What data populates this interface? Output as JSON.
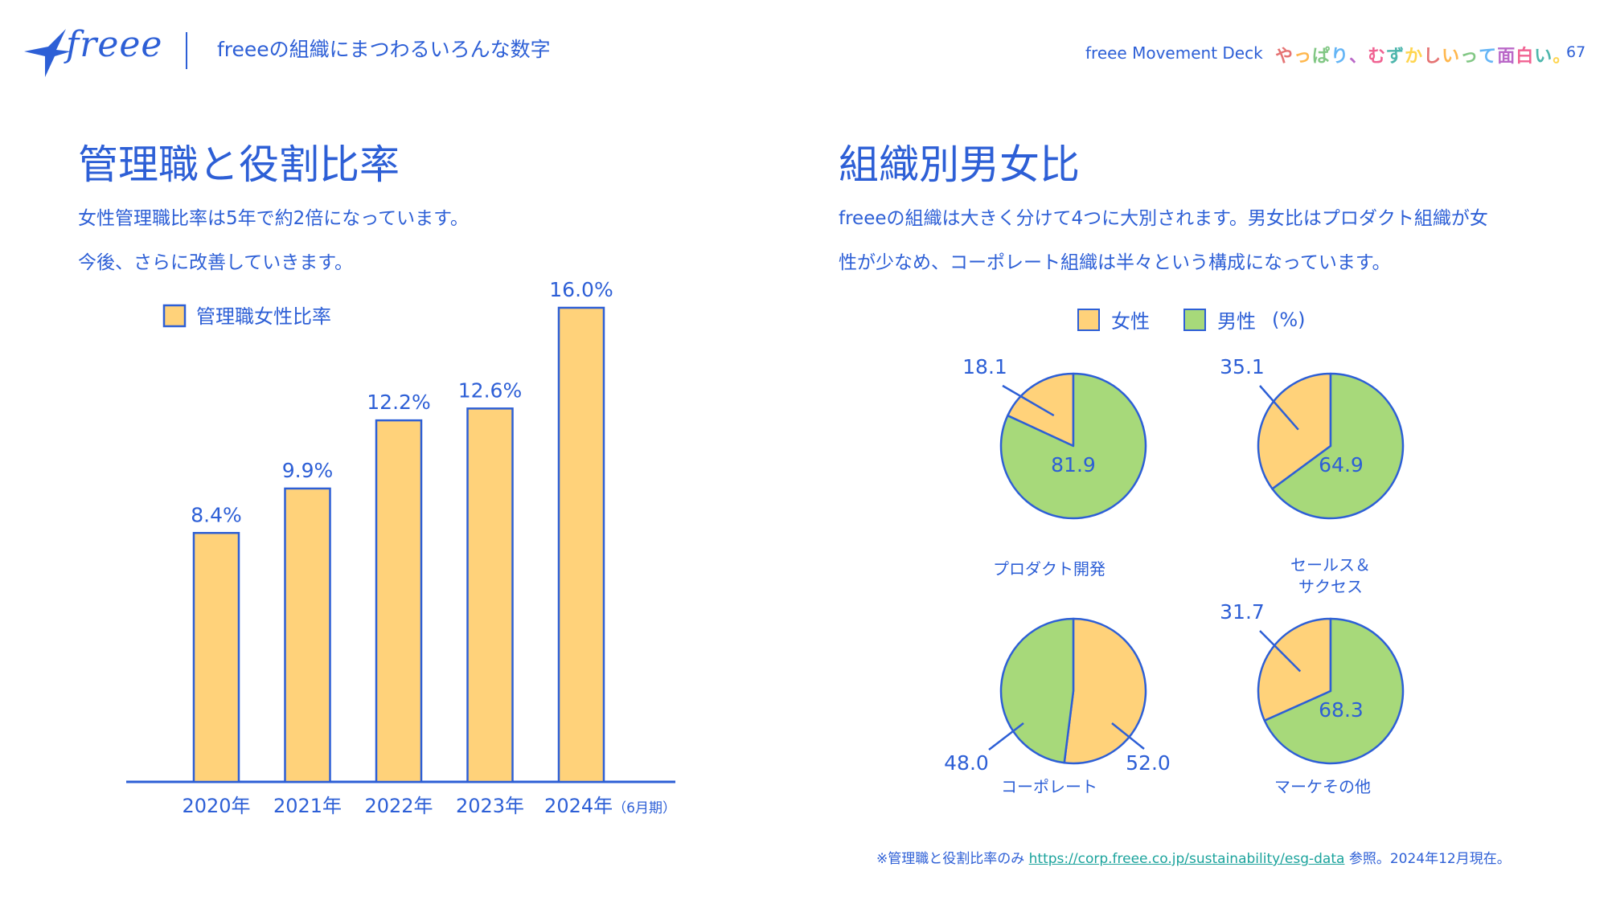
{
  "header": {
    "logo_text": "freee",
    "section_title": "freeeの組織にまつわるいろんな数字",
    "deck_title": "freee Movement Deck",
    "tagline": "やっぱり、むずかしいって面白い。",
    "page_number": "67"
  },
  "left_panel": {
    "title": "管理職と役割比率",
    "desc_line1": "女性管理職比率は5年で約2倍になっています。",
    "desc_line2": "今後、さらに改善していきます。"
  },
  "right_panel": {
    "title": "組織別男女比",
    "desc_line1": "freeeの組織は大きく分けて4つに大別されます。男女比はプロダクト組織が女",
    "desc_line2": "性が少なめ、コーポレート組織は半々という構成になっています。"
  },
  "footnote": {
    "prefix": "※管理職と役割比率のみ",
    "link": "https://corp.freee.co.jp/sustainability/esg-data",
    "suffix": "参照。2024年12月現在。"
  },
  "colors": {
    "accent": "#2d5fd6",
    "female": "#ffd27a",
    "male": "#a7d97a",
    "link": "#1ba39c"
  },
  "chart_data": [
    {
      "type": "bar",
      "legend": "管理職女性比率",
      "categories": [
        "2020年",
        "2021年",
        "2022年",
        "2023年",
        "2024年"
      ],
      "category_note": "（6月期）",
      "values": [
        8.4,
        9.9,
        12.2,
        12.6,
        16.0
      ],
      "value_labels": [
        "8.4%",
        "9.9%",
        "12.2%",
        "12.6%",
        "16.0%"
      ],
      "ylim": [
        0,
        16.0
      ]
    },
    {
      "type": "pie",
      "legend": [
        "女性",
        "男性"
      ],
      "unit_label": "(%)",
      "charts": [
        {
          "name": "プロダクト開発",
          "female": 18.1,
          "male": 81.9,
          "female_label": "18.1",
          "male_label": "81.9"
        },
        {
          "name_line1": "セールス＆",
          "name_line2": "サクセス",
          "female": 35.1,
          "male": 64.9,
          "female_label": "35.1",
          "male_label": "64.9"
        },
        {
          "name": "コーポレート",
          "female": 52.0,
          "male": 48.0,
          "female_label": "52.0",
          "male_label": "48.0"
        },
        {
          "name": "マーケその他",
          "female": 31.7,
          "male": 68.3,
          "female_label": "31.7",
          "male_label": "68.3"
        }
      ]
    }
  ]
}
